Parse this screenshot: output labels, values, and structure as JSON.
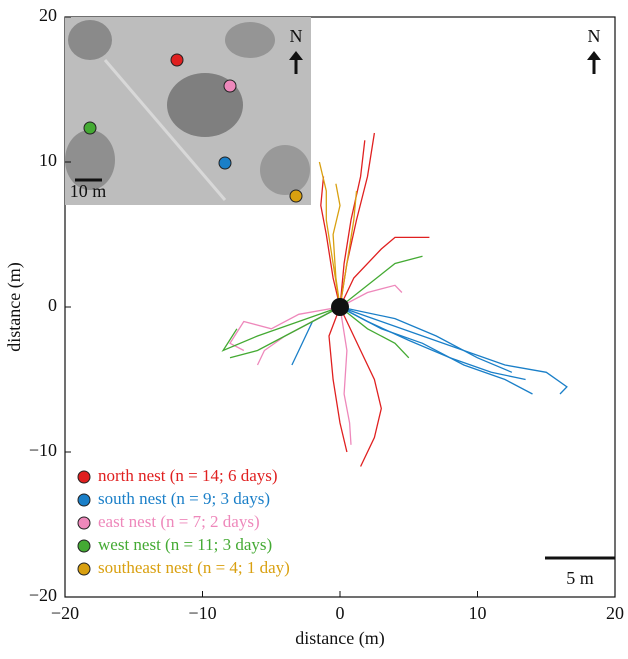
{
  "chart_data": {
    "type": "line",
    "xlabel": "distance (m)",
    "ylabel": "distance (m)",
    "xlim": [
      -20,
      20
    ],
    "ylim": [
      -20,
      20
    ],
    "xticks": [
      {
        "value": -20,
        "label": "−20"
      },
      {
        "value": -10,
        "label": "−10"
      },
      0,
      10,
      20
    ],
    "yticks": [
      {
        "value": -20,
        "label": "−20"
      },
      {
        "value": -10,
        "label": "−10"
      },
      0,
      10,
      20
    ],
    "legend": "lower left",
    "annotations": {
      "inset_scale": "10 m",
      "inset_north": "N",
      "north": "N",
      "scale_bar": "5 m"
    },
    "series": [
      {
        "name": "north nest (n = 14; 6 days)",
        "color": "#e02020",
        "tracks": [
          {
            "x": [
              0,
              0.5,
              1.2,
              2,
              2.5
            ],
            "y": [
              0,
              3,
              6,
              9,
              12
            ]
          },
          {
            "x": [
              0,
              0.3,
              0.8,
              1.5,
              1.8
            ],
            "y": [
              0,
              3,
              6,
              9,
              11.5
            ]
          },
          {
            "x": [
              0,
              -0.5,
              -1,
              -1.4,
              -1.2
            ],
            "y": [
              0,
              2,
              5,
              7,
              9
            ]
          },
          {
            "x": [
              0,
              1.5,
              2.5,
              3,
              2.5,
              1.5
            ],
            "y": [
              0,
              -3,
              -5,
              -7,
              -9,
              -11
            ]
          },
          {
            "x": [
              0,
              -0.8,
              -0.5,
              0,
              0.5
            ],
            "y": [
              0,
              -2,
              -5,
              -8,
              -10
            ]
          },
          {
            "x": [
              0,
              1,
              3,
              4,
              6.5
            ],
            "y": [
              0,
              2,
              4,
              4.8,
              4.8
            ]
          }
        ]
      },
      {
        "name": "south nest (n = 9; 3 days)",
        "color": "#1a7fc8",
        "tracks": [
          {
            "x": [
              0,
              3,
              6,
              9,
              12,
              15,
              16.5,
              16
            ],
            "y": [
              0,
              -1,
              -2,
              -3,
              -4,
              -4.5,
              -5.5,
              -6
            ]
          },
          {
            "x": [
              0,
              3,
              6,
              9,
              12,
              14
            ],
            "y": [
              0,
              -1.5,
              -2.5,
              -4,
              -5,
              -6
            ]
          },
          {
            "x": [
              0,
              2,
              5,
              8,
              11,
              13.5
            ],
            "y": [
              0,
              -1,
              -2.3,
              -3.5,
              -4.5,
              -5
            ]
          },
          {
            "x": [
              0,
              4,
              7,
              10,
              12.5
            ],
            "y": [
              0,
              -0.8,
              -2,
              -3.5,
              -4.5
            ]
          },
          {
            "x": [
              0,
              -2,
              -3,
              -3.5
            ],
            "y": [
              0,
              -1,
              -3,
              -4
            ]
          }
        ]
      },
      {
        "name": "east nest (n = 7; 2 days)",
        "color": "#ee88bb",
        "tracks": [
          {
            "x": [
              0,
              -3,
              -5,
              -7,
              -8,
              -7
            ],
            "y": [
              0,
              -0.5,
              -1.5,
              -1,
              -2.5,
              -3
            ]
          },
          {
            "x": [
              0,
              -2,
              -4,
              -5.5,
              -6
            ],
            "y": [
              0,
              -1,
              -2,
              -3,
              -4
            ]
          },
          {
            "x": [
              0,
              0.5,
              0.3,
              0.7,
              0.8
            ],
            "y": [
              0,
              -3,
              -6,
              -8,
              -9.5
            ]
          },
          {
            "x": [
              0,
              2,
              4,
              4.5
            ],
            "y": [
              0,
              1,
              1.5,
              1
            ]
          }
        ]
      },
      {
        "name": "west nest (n = 11; 3 days)",
        "color": "#44aa33",
        "tracks": [
          {
            "x": [
              0,
              -2,
              -4,
              -6,
              -8
            ],
            "y": [
              0,
              -1,
              -2,
              -3,
              -3.5
            ]
          },
          {
            "x": [
              0,
              -3,
              -6,
              -8.5,
              -7.5
            ],
            "y": [
              0,
              -1,
              -2,
              -3,
              -1.5
            ]
          },
          {
            "x": [
              0,
              2,
              4,
              6
            ],
            "y": [
              0,
              1.5,
              3,
              3.5
            ]
          },
          {
            "x": [
              0,
              2,
              4,
              5
            ],
            "y": [
              0,
              -1.5,
              -2.5,
              -3.5
            ]
          }
        ]
      },
      {
        "name": "southeast nest (n = 4; 1 day)",
        "color": "#d9a010",
        "tracks": [
          {
            "x": [
              0,
              -0.5,
              -1,
              -1,
              -1.5
            ],
            "y": [
              0,
              3,
              6,
              8,
              10
            ]
          },
          {
            "x": [
              0,
              -0.3,
              -0.5,
              0,
              -0.3
            ],
            "y": [
              0,
              2,
              5,
              7,
              8.5
            ]
          },
          {
            "x": [
              0,
              0.5,
              1,
              1.2
            ],
            "y": [
              0,
              3,
              6,
              8
            ]
          }
        ]
      }
    ]
  }
}
